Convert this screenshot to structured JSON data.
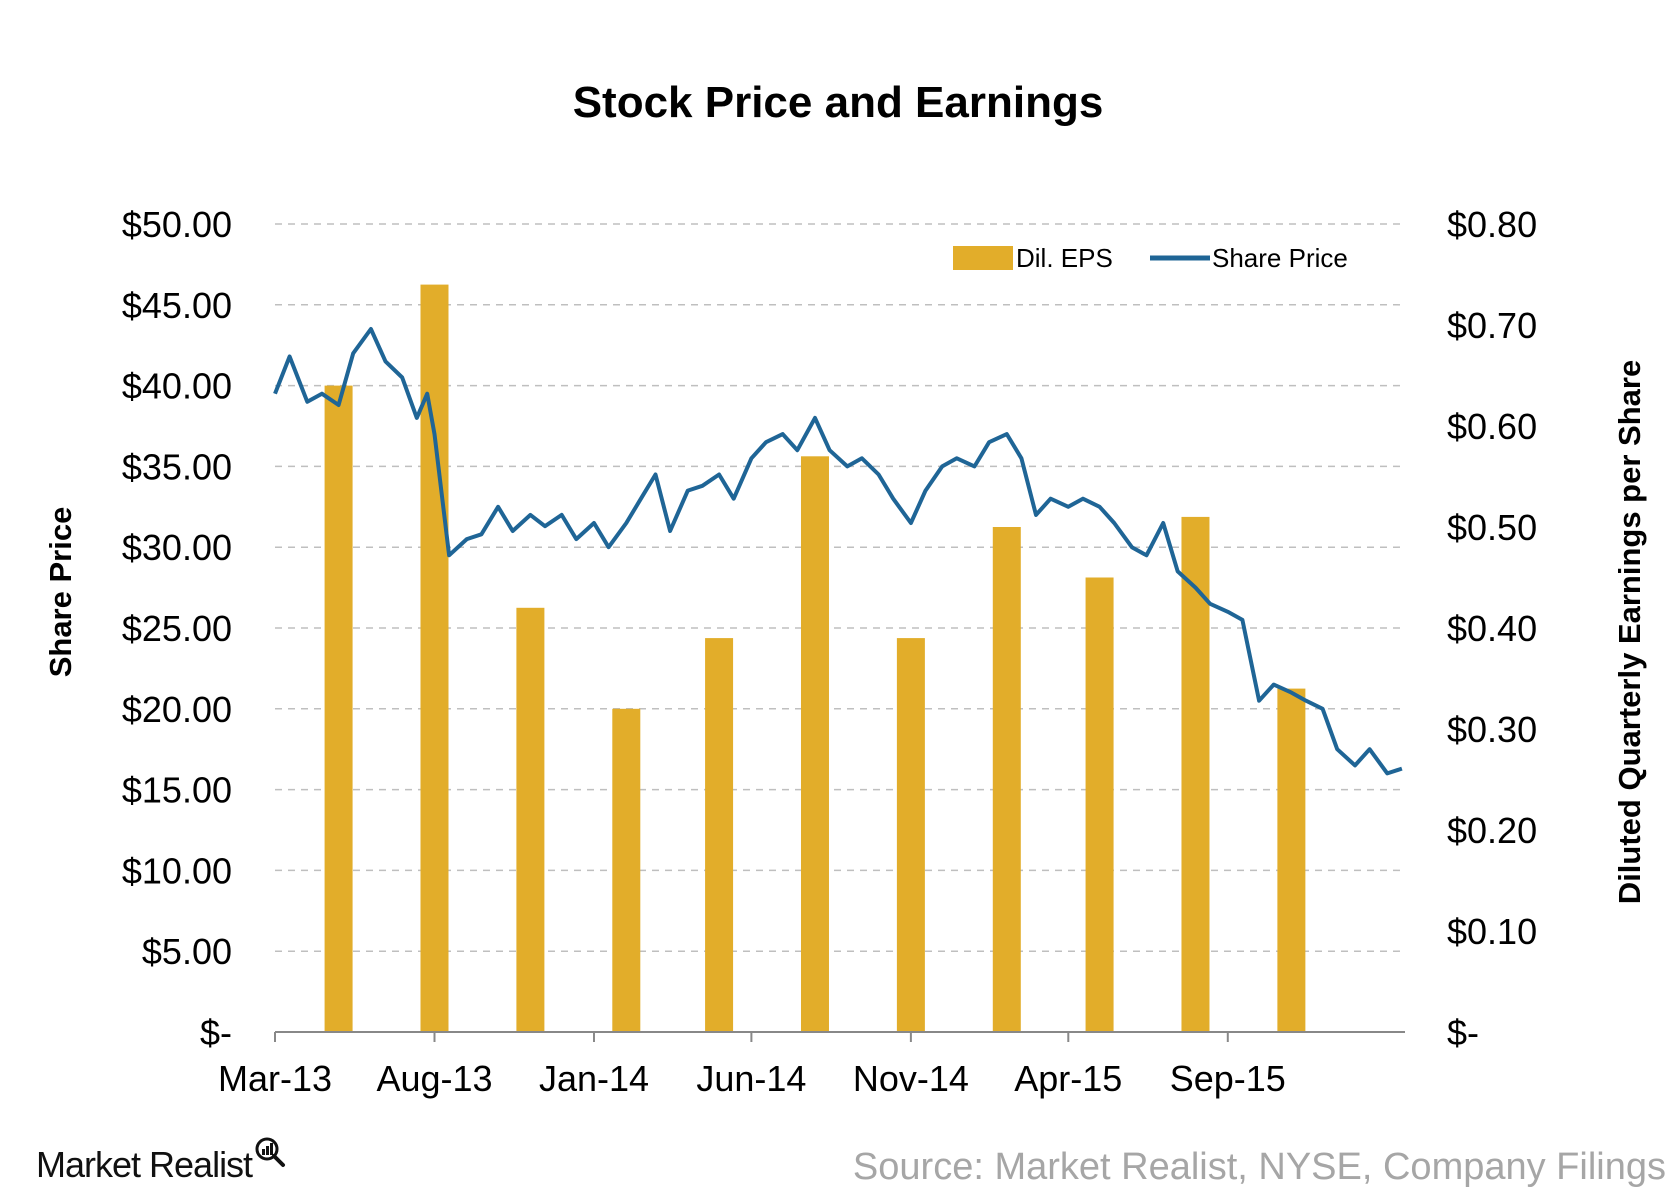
{
  "colors": {
    "bar": "#e2ad2a",
    "line": "#1f6596",
    "grid": "#bfbfbf",
    "axis": "#888888"
  },
  "footer": {
    "logo_text": "Market Realist",
    "source": "Source: Market Realist, NYSE, Company Filings"
  },
  "chart_data": {
    "type": "bar+line",
    "title": "Stock Price and Earnings",
    "y_left_label": "Share Price",
    "y_right_label": "Diluted Quarterly Earnings per Share",
    "y_left_ticks": [
      "$-",
      "$5.00",
      "$10.00",
      "$15.00",
      "$20.00",
      "$25.00",
      "$30.00",
      "$35.00",
      "$40.00",
      "$45.00",
      "$50.00"
    ],
    "y_right_ticks": [
      "$-",
      "$0.10",
      "$0.20",
      "$0.30",
      "$0.40",
      "$0.50",
      "$0.60",
      "$0.70",
      "$0.80"
    ],
    "x_tick_labels": [
      "Mar-13",
      "Aug-13",
      "Jan-14",
      "Jun-14",
      "Nov-14",
      "Apr-15",
      "Sep-15"
    ],
    "ylim_left": [
      0,
      50
    ],
    "ylim_right": [
      0,
      0.8
    ],
    "grid": "horizontal dashed",
    "legend_position": "top-right",
    "series": [
      {
        "name": "Dil. EPS",
        "type": "bar",
        "axis": "right",
        "x": [
          "2013-05-01",
          "2013-08-01",
          "2013-11-01",
          "2014-02-01",
          "2014-05-01",
          "2014-08-01",
          "2014-11-01",
          "2015-02-01",
          "2015-05-01",
          "2015-08-01",
          "2015-11-01"
        ],
        "values": [
          0.64,
          0.74,
          0.42,
          0.32,
          0.39,
          0.57,
          0.39,
          0.5,
          0.45,
          0.51,
          0.34
        ]
      },
      {
        "name": "Share Price",
        "type": "line",
        "axis": "left",
        "x": [
          "2013-03-01",
          "2013-03-15",
          "2013-04-01",
          "2013-04-15",
          "2013-05-01",
          "2013-05-15",
          "2013-06-01",
          "2013-06-15",
          "2013-07-01",
          "2013-07-15",
          "2013-07-25",
          "2013-08-01",
          "2013-08-15",
          "2013-09-01",
          "2013-09-15",
          "2013-10-01",
          "2013-10-15",
          "2013-11-01",
          "2013-11-15",
          "2013-12-01",
          "2013-12-15",
          "2014-01-01",
          "2014-01-15",
          "2014-02-01",
          "2014-02-15",
          "2014-03-01",
          "2014-03-15",
          "2014-04-01",
          "2014-04-15",
          "2014-05-01",
          "2014-05-15",
          "2014-06-01",
          "2014-06-15",
          "2014-07-01",
          "2014-07-15",
          "2014-08-01",
          "2014-08-15",
          "2014-09-01",
          "2014-09-15",
          "2014-10-01",
          "2014-10-15",
          "2014-11-01",
          "2014-11-15",
          "2014-12-01",
          "2014-12-15",
          "2015-01-01",
          "2015-01-15",
          "2015-02-01",
          "2015-02-15",
          "2015-03-01",
          "2015-03-15",
          "2015-04-01",
          "2015-04-15",
          "2015-05-01",
          "2015-05-15",
          "2015-06-01",
          "2015-06-15",
          "2015-07-01",
          "2015-07-15",
          "2015-08-01",
          "2015-08-15",
          "2015-09-01",
          "2015-09-15",
          "2015-10-01",
          "2015-10-15",
          "2015-11-01",
          "2015-11-15",
          "2015-12-01",
          "2015-12-15",
          "2016-01-01",
          "2016-01-15",
          "2016-02-01",
          "2016-02-15"
        ],
        "values": [
          39.5,
          41.8,
          39.0,
          39.5,
          38.8,
          42.0,
          43.5,
          41.5,
          40.5,
          38.0,
          39.5,
          37.0,
          29.5,
          30.5,
          30.8,
          32.5,
          31.0,
          32.0,
          31.3,
          32.0,
          30.5,
          31.5,
          30.0,
          31.5,
          33.0,
          34.5,
          31.0,
          33.5,
          33.8,
          34.5,
          33.0,
          35.5,
          36.5,
          37.0,
          36.0,
          38.0,
          36.0,
          35.0,
          35.5,
          34.5,
          33.0,
          31.5,
          33.5,
          35.0,
          35.5,
          35.0,
          36.5,
          37.0,
          35.5,
          32.0,
          33.0,
          32.5,
          33.0,
          32.5,
          31.5,
          30.0,
          29.5,
          31.5,
          28.5,
          27.5,
          26.5,
          26.0,
          25.5,
          20.5,
          21.5,
          21.0,
          20.5,
          20.0,
          17.5,
          16.5,
          17.5,
          16.0,
          16.3
        ]
      }
    ]
  }
}
